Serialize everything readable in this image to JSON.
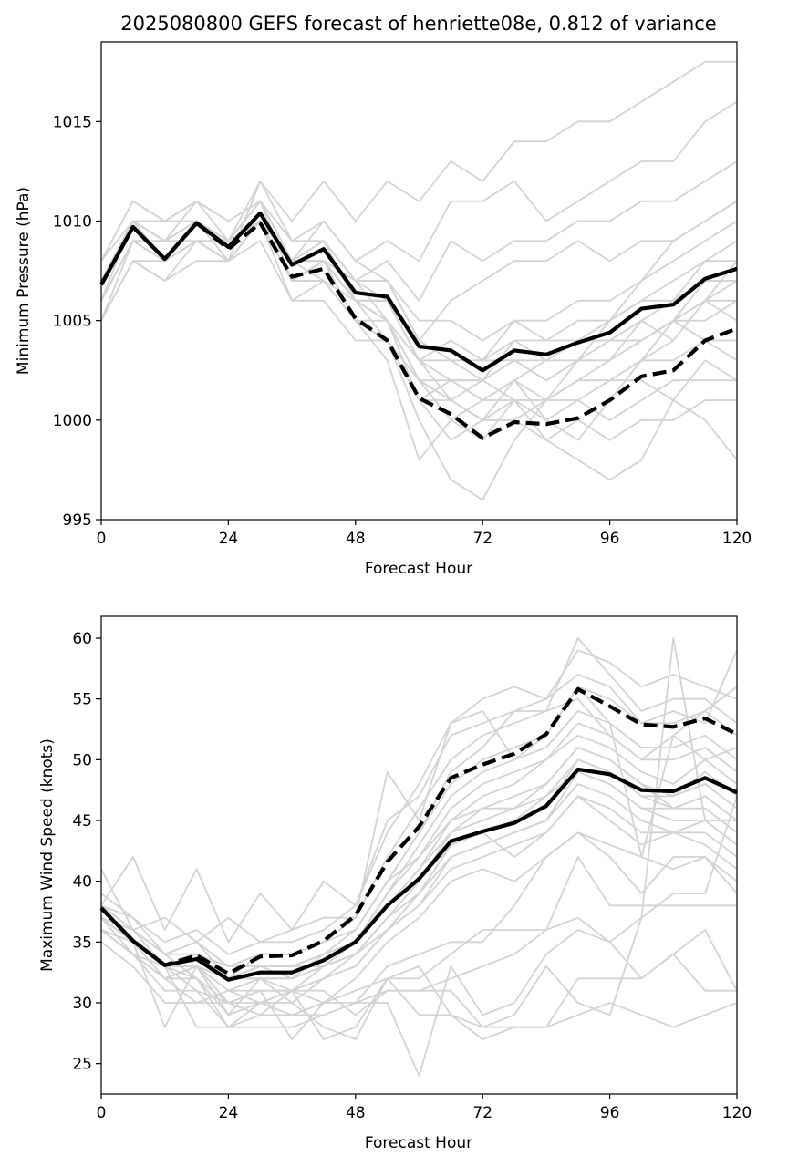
{
  "title": "2025080800 GEFS forecast of henriette08e, 0.812 of variance",
  "colors": {
    "members": "#d3d3d3",
    "primary": "#000000"
  },
  "chart_data": [
    {
      "type": "line",
      "xlabel": "Forecast Hour",
      "ylabel": "Minimum Pressure (hPa)",
      "xlim": [
        0,
        120
      ],
      "ylim": [
        995,
        1019
      ],
      "xticks": [
        0,
        24,
        48,
        72,
        96,
        120
      ],
      "yticks": [
        995,
        1000,
        1005,
        1010,
        1015
      ],
      "grid": false,
      "x": [
        0,
        6,
        12,
        18,
        24,
        30,
        36,
        42,
        48,
        54,
        60,
        66,
        72,
        78,
        84,
        90,
        96,
        102,
        108,
        114,
        120
      ],
      "series": [
        {
          "style": "solid",
          "values": [
            1006.8,
            1009.7,
            1008.1,
            1009.9,
            1008.7,
            1010.4,
            1007.8,
            1008.6,
            1006.4,
            1006.2,
            1003.7,
            1003.5,
            1002.5,
            1003.5,
            1003.3,
            1003.9,
            1004.4,
            1005.6,
            1005.8,
            1007.1,
            1007.6
          ]
        },
        {
          "style": "dashed",
          "values": [
            1006.8,
            1009.7,
            1008.1,
            1009.9,
            1008.6,
            1009.9,
            1007.2,
            1007.6,
            1005.1,
            1004.0,
            1001.1,
            1000.3,
            999.1,
            999.9,
            999.8,
            1000.1,
            1001.0,
            1002.2,
            1002.5,
            1004.0,
            1004.6
          ]
        }
      ],
      "members": [
        [
          1005,
          1008,
          1007,
          1009,
          1009,
          1011,
          1008,
          1009,
          1006,
          1004,
          1000,
          997,
          996,
          999,
          1001,
          1003,
          1005,
          1007,
          1009,
          1010,
          1011
        ],
        [
          1006,
          1009,
          1008,
          1010,
          1009,
          1011,
          1007,
          1008,
          1005,
          1003,
          998,
          1000,
          999,
          1001,
          999,
          998,
          997,
          998,
          1001,
          1003,
          1002
        ],
        [
          1007,
          1010,
          1009,
          1010,
          1008,
          1012,
          1009,
          1009,
          1007,
          1005,
          1002,
          1001,
          1000,
          1002,
          1000,
          999,
          1001,
          1003,
          1005,
          1006,
          1008
        ],
        [
          1008,
          1011,
          1010,
          1011,
          1010,
          1011,
          1008,
          1010,
          1008,
          1007,
          1004,
          1003,
          1002,
          1004,
          1003,
          1004,
          1004,
          1005,
          1006,
          1008,
          1009
        ],
        [
          1006,
          1010,
          1008,
          1010,
          1009,
          1010,
          1008,
          1008,
          1006,
          1006,
          1003,
          1004,
          1003,
          1003,
          1002,
          1003,
          1003,
          1004,
          1005,
          1007,
          1007
        ],
        [
          1005,
          1009,
          1008,
          1009,
          1008,
          1010,
          1006,
          1007,
          1005,
          1005,
          1002,
          1002,
          1001,
          1002,
          1001,
          1002,
          1002,
          1003,
          1004,
          1006,
          1006
        ],
        [
          1007,
          1010,
          1009,
          1010,
          1009,
          1011,
          1008,
          1009,
          1007,
          1007,
          1005,
          1005,
          1004,
          1005,
          1005,
          1006,
          1006,
          1007,
          1008,
          1009,
          1010
        ],
        [
          1006,
          1009,
          1008,
          1009,
          1008,
          1010,
          1007,
          1008,
          1006,
          1005,
          1001,
          999,
          1000,
          1000,
          1001,
          1002,
          1003,
          1004,
          1005,
          1004,
          1003
        ],
        [
          1008,
          1011,
          1010,
          1011,
          1009,
          1012,
          1010,
          1012,
          1010,
          1012,
          1011,
          1013,
          1012,
          1014,
          1014,
          1015,
          1015,
          1016,
          1017,
          1018,
          1018
        ],
        [
          1007,
          1010,
          1009,
          1010,
          1009,
          1011,
          1009,
          1010,
          1008,
          1009,
          1008,
          1011,
          1011,
          1012,
          1010,
          1011,
          1012,
          1013,
          1013,
          1015,
          1016
        ],
        [
          1006,
          1009,
          1008,
          1009,
          1009,
          1010,
          1008,
          1009,
          1007,
          1008,
          1006,
          1009,
          1008,
          1009,
          1009,
          1010,
          1010,
          1011,
          1011,
          1012,
          1013
        ],
        [
          1005,
          1008,
          1007,
          1008,
          1008,
          1010,
          1007,
          1008,
          1006,
          1006,
          1004,
          1006,
          1007,
          1008,
          1008,
          1009,
          1008,
          1009,
          1009,
          1010,
          1011
        ],
        [
          1006,
          1009,
          1009,
          1010,
          1009,
          1010,
          1007,
          1007,
          1005,
          1004,
          1002,
          1001,
          1000,
          1000,
          999,
          1000,
          999,
          1000,
          1000,
          1001,
          1001
        ],
        [
          1007,
          1010,
          1008,
          1010,
          1009,
          1011,
          1008,
          1008,
          1006,
          1005,
          1003,
          1002,
          1001,
          1001,
          1000,
          1001,
          1000,
          1001,
          1002,
          1002,
          1002
        ],
        [
          1008,
          1010,
          1009,
          1011,
          1010,
          1011,
          1009,
          1009,
          1007,
          1007,
          1004,
          1003,
          1003,
          1004,
          1004,
          1005,
          1005,
          1006,
          1006,
          1007,
          1007
        ],
        [
          1006,
          1009,
          1008,
          1009,
          1008,
          1010,
          1007,
          1007,
          1006,
          1005,
          1002,
          1000,
          1001,
          1002,
          1003,
          1004,
          1004,
          1004,
          1005,
          1005,
          1006
        ],
        [
          1005,
          1008,
          1008,
          1009,
          1008,
          1009,
          1006,
          1006,
          1004,
          1004,
          1001,
          1002,
          1002,
          1003,
          1002,
          1003,
          1003,
          1005,
          1004,
          1006,
          1005
        ],
        [
          1007,
          1010,
          1009,
          1010,
          1009,
          1011,
          1008,
          1008,
          1007,
          1006,
          1003,
          1003,
          1003,
          1005,
          1004,
          1004,
          1005,
          1006,
          1007,
          1008,
          1008
        ],
        [
          1006,
          1009,
          1009,
          1009,
          1009,
          1010,
          1007,
          1008,
          1006,
          1006,
          1003,
          1002,
          1002,
          1003,
          1003,
          1003,
          1004,
          1004,
          1005,
          1006,
          1007
        ],
        [
          1007,
          1010,
          1010,
          1010,
          1009,
          1011,
          1008,
          1008,
          1006,
          1005,
          1003,
          1001,
          1002,
          1001,
          1001,
          1002,
          1002,
          1003,
          1003,
          1004,
          1004
        ],
        [
          1006,
          1009,
          1008,
          1010,
          1009,
          1010,
          1008,
          1007,
          1005,
          1004,
          1001,
          1001,
          1000,
          1001,
          1001,
          1001,
          1002,
          1002,
          1001,
          1000,
          998
        ]
      ]
    },
    {
      "type": "line",
      "xlabel": "Forecast Hour",
      "ylabel": "Maximum Wind Speed (knots)",
      "xlim": [
        0,
        120
      ],
      "ylim": [
        22.5,
        61.8
      ],
      "xticks": [
        0,
        24,
        48,
        72,
        96,
        120
      ],
      "yticks": [
        25,
        30,
        35,
        40,
        45,
        50,
        55,
        60
      ],
      "grid": false,
      "x": [
        0,
        6,
        12,
        18,
        24,
        30,
        36,
        42,
        48,
        54,
        60,
        66,
        72,
        78,
        84,
        90,
        96,
        102,
        108,
        114,
        120
      ],
      "series": [
        {
          "style": "solid",
          "values": [
            37.8,
            35.1,
            33.1,
            33.6,
            31.9,
            32.5,
            32.5,
            33.5,
            35.0,
            38.0,
            40.2,
            43.3,
            44.1,
            44.8,
            46.2,
            49.2,
            48.8,
            47.5,
            47.4,
            48.5,
            47.3
          ]
        },
        {
          "style": "dashed",
          "values": [
            37.8,
            35.1,
            33.1,
            33.9,
            32.4,
            33.8,
            33.9,
            35.1,
            37.2,
            41.6,
            44.5,
            48.5,
            49.6,
            50.5,
            52.1,
            55.8,
            54.4,
            52.9,
            52.7,
            53.4,
            52.1
          ]
        }
      ],
      "members": [
        [
          37,
          35,
          33,
          34,
          32,
          33,
          33,
          34,
          36,
          40,
          44,
          48,
          50,
          51,
          52,
          56,
          55,
          53,
          53,
          54,
          52
        ],
        [
          38,
          36,
          34,
          35,
          33,
          34,
          34,
          35,
          37,
          42,
          46,
          50,
          52,
          53,
          54,
          60,
          57,
          54,
          55,
          55,
          53
        ],
        [
          39,
          37,
          35,
          36,
          34,
          35,
          35,
          36,
          38,
          44,
          48,
          53,
          55,
          56,
          55,
          59,
          58,
          56,
          57,
          56,
          55
        ],
        [
          36,
          34,
          32,
          33,
          31,
          32,
          32,
          33,
          35,
          39,
          43,
          47,
          49,
          50,
          51,
          54,
          53,
          51,
          51,
          52,
          50
        ],
        [
          37,
          35,
          33,
          34,
          32,
          33,
          33,
          34,
          35,
          38,
          41,
          45,
          47,
          48,
          50,
          53,
          52,
          50,
          50,
          51,
          49
        ],
        [
          38,
          36,
          34,
          35,
          32,
          34,
          34,
          35,
          36,
          40,
          42,
          46,
          48,
          49,
          50,
          52,
          51,
          49,
          48,
          50,
          48
        ],
        [
          36,
          34,
          32,
          33,
          31,
          32,
          31,
          33,
          34,
          37,
          40,
          44,
          46,
          47,
          48,
          51,
          50,
          48,
          47,
          49,
          47
        ],
        [
          37,
          36,
          33,
          34,
          32,
          33,
          33,
          33,
          35,
          38,
          41,
          44,
          45,
          46,
          47,
          50,
          49,
          47,
          46,
          47,
          45
        ],
        [
          38,
          35,
          33,
          34,
          32,
          33,
          32,
          34,
          35,
          39,
          42,
          45,
          46,
          46,
          48,
          51,
          50,
          48,
          46,
          46,
          44
        ],
        [
          36,
          35,
          32,
          33,
          31,
          31,
          31,
          32,
          33,
          36,
          38,
          42,
          43,
          44,
          45,
          48,
          47,
          45,
          44,
          44,
          42
        ],
        [
          37,
          34,
          32,
          33,
          30,
          31,
          31,
          32,
          34,
          37,
          39,
          43,
          44,
          45,
          47,
          49,
          48,
          46,
          45,
          45,
          43
        ],
        [
          38,
          36,
          34,
          34,
          33,
          33,
          33,
          34,
          35,
          38,
          40,
          43,
          44,
          45,
          46,
          50,
          49,
          47,
          47,
          48,
          46
        ],
        [
          36,
          35,
          33,
          33,
          32,
          32,
          32,
          33,
          34,
          37,
          39,
          42,
          43,
          44,
          45,
          49,
          48,
          46,
          46,
          47,
          45
        ],
        [
          37,
          35,
          33,
          33,
          32,
          32,
          32,
          33,
          34,
          36,
          38,
          41,
          42,
          43,
          44,
          47,
          46,
          44,
          44,
          45,
          43
        ],
        [
          41,
          36,
          34,
          35,
          33,
          34,
          34,
          35,
          36,
          40,
          44,
          49,
          51,
          54,
          55,
          57,
          56,
          53,
          54,
          53,
          59
        ],
        [
          38,
          42,
          36,
          41,
          35,
          39,
          36,
          40,
          38,
          45,
          47,
          52,
          53,
          54,
          54,
          55,
          52,
          50,
          52,
          54,
          56
        ],
        [
          37,
          36,
          37,
          35,
          37,
          35,
          36,
          37,
          37,
          49,
          45,
          53,
          54,
          50,
          52,
          56,
          53,
          42,
          52,
          50,
          51
        ],
        [
          36,
          35,
          28,
          33,
          29,
          32,
          30,
          32,
          33,
          36,
          39,
          43,
          44,
          42,
          44,
          47,
          45,
          43,
          44,
          43,
          41
        ],
        [
          37,
          35,
          32,
          32,
          29,
          30,
          29,
          30,
          32,
          35,
          37,
          40,
          41,
          40,
          42,
          44,
          43,
          42,
          41,
          42,
          40
        ],
        [
          36,
          34,
          31,
          31,
          28,
          28,
          28,
          29,
          30,
          33,
          34,
          35,
          35,
          38,
          42,
          44,
          42,
          39,
          42,
          42,
          39
        ],
        [
          37,
          35,
          33,
          32,
          30,
          30,
          31,
          30,
          31,
          32,
          32,
          34,
          36,
          36,
          36,
          42,
          38,
          38,
          38,
          38,
          38
        ],
        [
          36,
          34,
          33,
          31,
          30,
          29,
          29,
          29,
          30,
          31,
          31,
          32,
          33,
          34,
          36,
          37,
          35,
          37,
          39,
          39,
          47
        ],
        [
          35,
          33,
          30,
          30,
          30,
          31,
          27,
          30,
          30,
          30,
          24,
          33,
          29,
          30,
          34,
          36,
          35,
          32,
          34,
          36,
          31
        ],
        [
          36,
          34,
          32,
          30,
          31,
          30,
          30,
          28,
          27,
          32,
          29,
          29,
          27,
          28,
          28,
          32,
          32,
          32,
          34,
          31,
          31
        ],
        [
          37,
          35,
          33,
          28,
          28,
          29,
          31,
          27,
          28,
          32,
          33,
          29,
          28,
          28,
          28,
          29,
          30,
          29,
          28,
          29,
          30
        ],
        [
          38,
          37,
          34,
          32,
          28,
          30,
          31,
          31,
          29,
          31,
          31,
          31,
          28,
          29,
          33,
          30,
          29,
          37,
          60,
          45,
          45
        ]
      ]
    }
  ]
}
